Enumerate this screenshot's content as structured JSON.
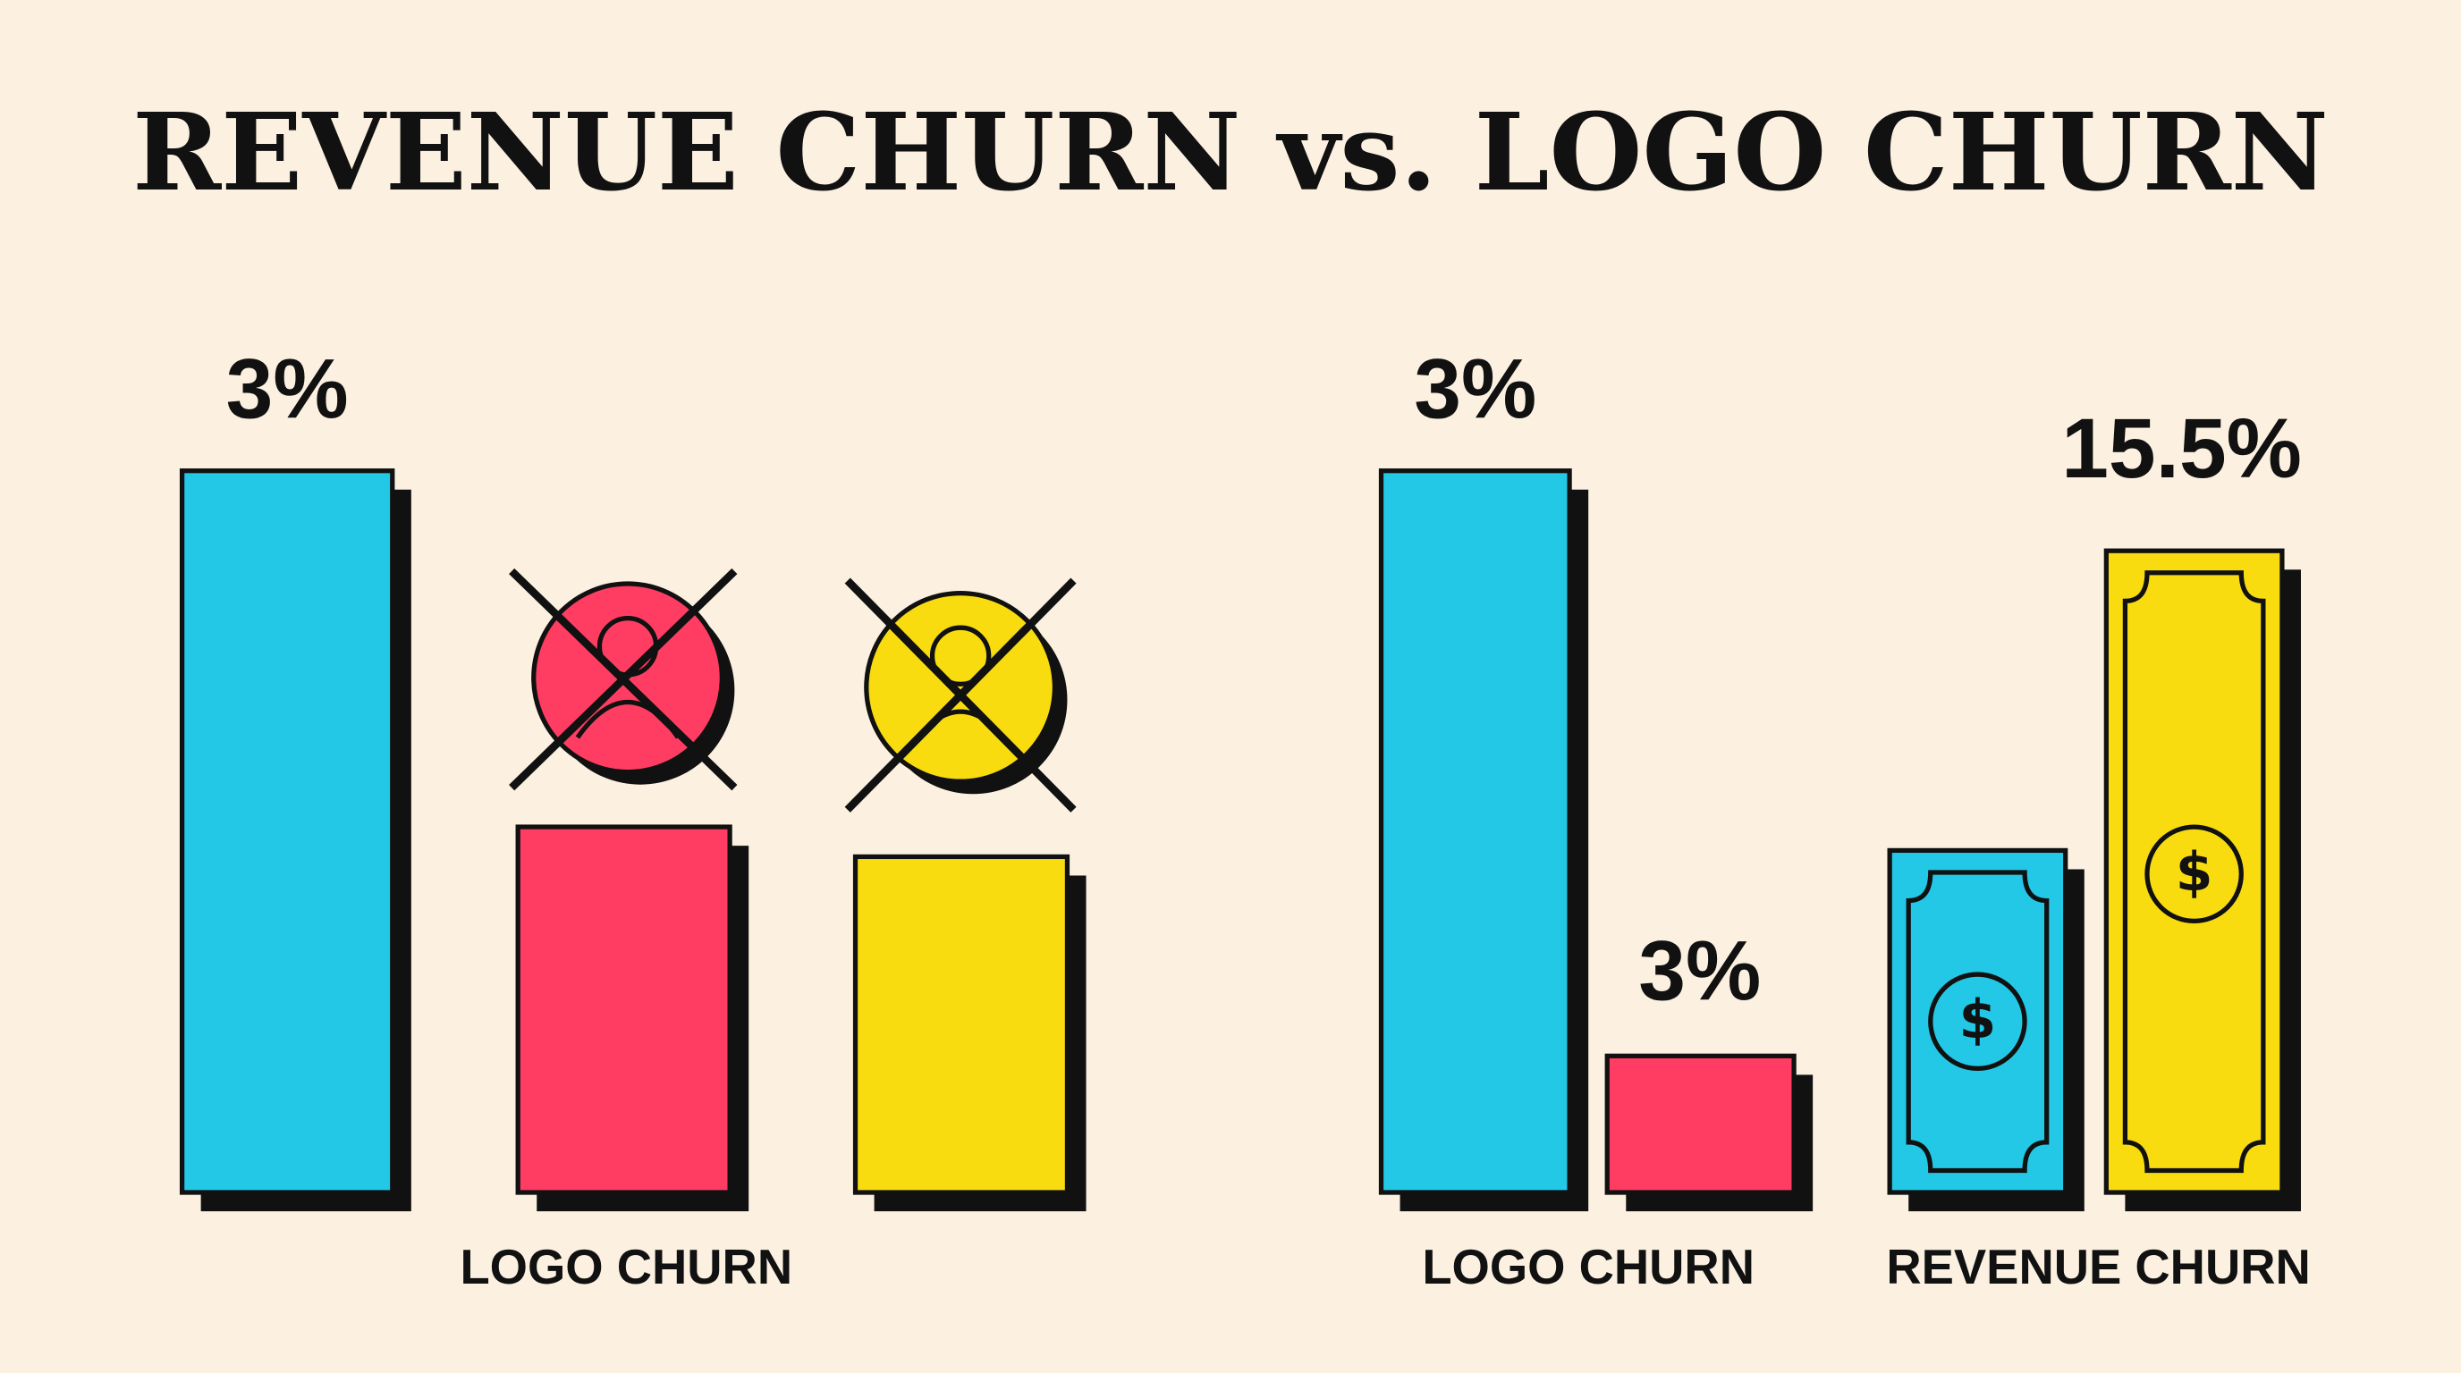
{
  "header": {
    "title": "REVENUE CHURN vs. LOGO CHURN"
  },
  "left_panel": {
    "bar_label": "3%",
    "caption": "LOGO CHURN"
  },
  "right_panel": {
    "logo_churn": {
      "before_label": "3%",
      "after_label": "3%",
      "caption": "LOGO CHURN"
    },
    "revenue_churn": {
      "label": "15.5%",
      "caption": "REVENUE CHURN"
    }
  }
}
